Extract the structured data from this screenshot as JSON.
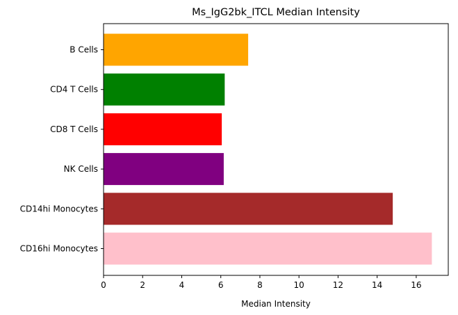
{
  "chart_data": {
    "type": "bar",
    "orientation": "horizontal",
    "title": "Ms_IgG2bk_ITCL Median Intensity",
    "xlabel": "Median Intensity",
    "ylabel": "",
    "categories": [
      "B Cells",
      "CD4 T Cells",
      "CD8 T Cells",
      "NK Cells",
      "CD14hi Monocytes",
      "CD16hi Monocytes"
    ],
    "values": [
      7.4,
      6.2,
      6.05,
      6.15,
      14.8,
      16.8
    ],
    "colors": [
      "#ffa500",
      "#008000",
      "#ff0000",
      "#800080",
      "#a52a2a",
      "#ffc0cb"
    ],
    "xlim": [
      0,
      17.64
    ],
    "xticks": [
      0,
      2,
      4,
      6,
      8,
      10,
      12,
      14,
      16
    ],
    "grid": false,
    "legend": "none"
  }
}
